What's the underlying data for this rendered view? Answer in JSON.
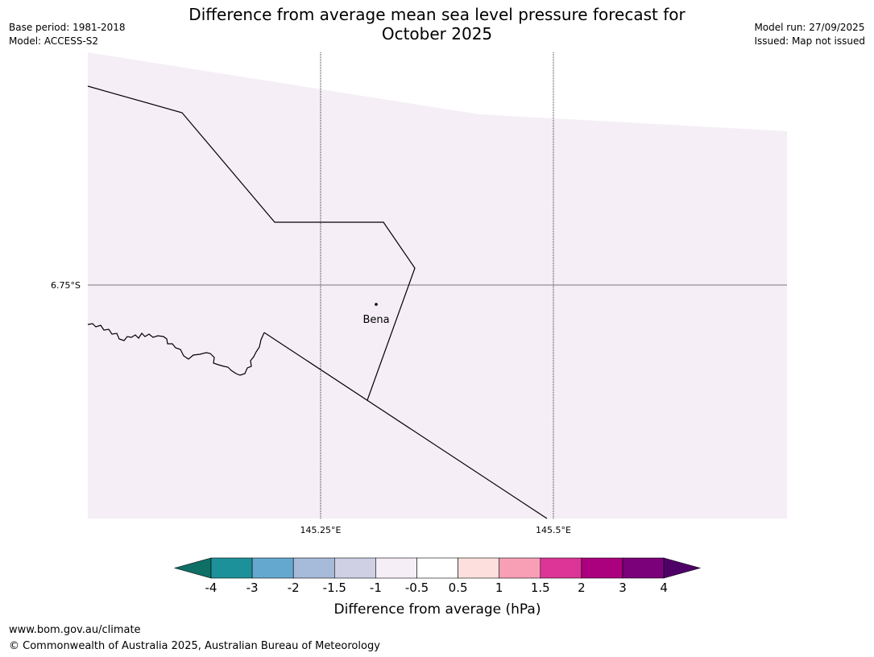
{
  "title_line1": "Difference from average mean sea level pressure forecast for",
  "title_line2": "October 2025",
  "base_period": "Base period: 1981-2018",
  "model": "Model: ACCESS-S2",
  "model_run": "Model run: 27/09/2025",
  "issued": "Issued: Map not issued",
  "map": {
    "lat_label": "6.75°S",
    "lon_labels": [
      "145.25°E",
      "145.5°E"
    ],
    "place": "Bena",
    "fill_color": "#f5eef6"
  },
  "colorbar": {
    "tick_labels": [
      "-4",
      "-3",
      "-2",
      "-1.5",
      "-1",
      "-0.5",
      "0.5",
      "1",
      "1.5",
      "2",
      "3",
      "4"
    ],
    "colors": [
      "#0f6f66",
      "#1d9199",
      "#65a8cf",
      "#a6bada",
      "#cfd0e4",
      "#f5eef6",
      "#ffffff",
      "#fde0dd",
      "#f89fb6",
      "#dc3597",
      "#ac017e",
      "#7b017a",
      "#4f0068"
    ],
    "label": "Difference from average (hPa)"
  },
  "footer_url": "www.bom.gov.au/climate",
  "footer_copyright": "© Commonwealth of Australia 2025, Australian Bureau of Meteorology"
}
